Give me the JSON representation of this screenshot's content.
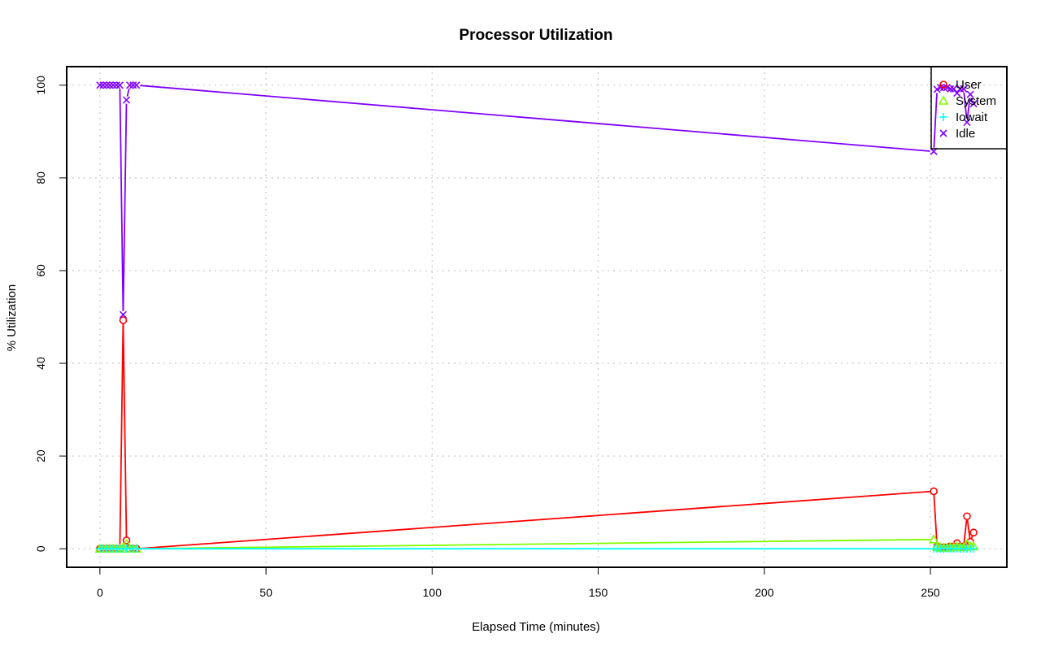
{
  "chart_data": {
    "type": "line",
    "title": "Processor Utilization",
    "xlabel": "Elapsed Time (minutes)",
    "ylabel": "% Utilization",
    "xlim": [
      -10,
      273
    ],
    "ylim": [
      -4,
      104
    ],
    "x_ticks": [
      0,
      50,
      100,
      150,
      200,
      250
    ],
    "y_ticks": [
      0,
      20,
      40,
      60,
      80,
      100
    ],
    "grid": true,
    "legend_position": "top-right",
    "x": [
      0,
      1,
      2,
      3,
      4,
      5,
      6,
      7,
      8,
      9,
      10,
      11,
      251,
      252,
      253,
      254,
      255,
      256,
      257,
      258,
      259,
      260,
      261,
      262,
      263
    ],
    "series": [
      {
        "name": "User",
        "color": "#ff0000",
        "marker": "circle",
        "values": [
          0,
          0,
          0,
          0,
          0,
          0,
          0,
          49.3,
          1.8,
          0,
          0,
          0,
          12.4,
          0.5,
          0.3,
          0.3,
          0.3,
          0.5,
          0.5,
          1.2,
          0.5,
          0.5,
          7.0,
          1.5,
          3.5
        ]
      },
      {
        "name": "System",
        "color": "#80ff00",
        "marker": "triangle",
        "values": [
          0,
          0,
          0,
          0,
          0,
          0,
          0,
          0.3,
          1.0,
          0,
          0,
          0,
          2.0,
          0.4,
          0.2,
          0.2,
          0.2,
          0.3,
          0.3,
          0.5,
          0.3,
          0.3,
          1.0,
          0.5,
          0.5
        ]
      },
      {
        "name": "Iowait",
        "color": "#00ffff",
        "marker": "plus",
        "values": [
          0,
          0,
          0,
          0,
          0,
          0,
          0,
          0,
          0,
          0,
          0,
          0,
          0,
          0,
          0,
          0,
          0,
          0,
          0,
          0,
          0,
          0,
          0,
          0,
          0
        ]
      },
      {
        "name": "Idle",
        "color": "#8000ff",
        "marker": "x",
        "values": [
          100,
          100,
          100,
          100,
          100,
          100,
          100,
          50.5,
          96.8,
          100,
          100,
          100,
          85.7,
          99.1,
          99.5,
          99.5,
          99.5,
          99.2,
          99.2,
          98.3,
          99.2,
          99.2,
          92.0,
          98.0,
          96.0
        ]
      }
    ]
  }
}
